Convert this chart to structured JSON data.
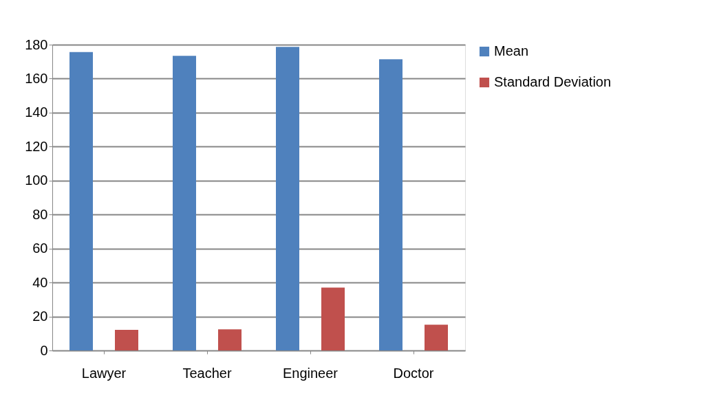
{
  "chart_data": {
    "type": "bar",
    "categories": [
      "Lawyer",
      "Teacher",
      "Engineer",
      "Doctor"
    ],
    "series": [
      {
        "name": "Mean",
        "color": "#4f81bd",
        "values": [
          175.7,
          173.4,
          178.7,
          171.4
        ]
      },
      {
        "name": "Standard Deviation",
        "color": "#c0504d",
        "values": [
          12.1,
          12.4,
          37.0,
          15.2
        ]
      }
    ],
    "ylim": [
      0,
      180
    ],
    "yticks": [
      0,
      20,
      40,
      60,
      80,
      100,
      120,
      140,
      160,
      180
    ],
    "grid": "y",
    "legend": "right"
  }
}
